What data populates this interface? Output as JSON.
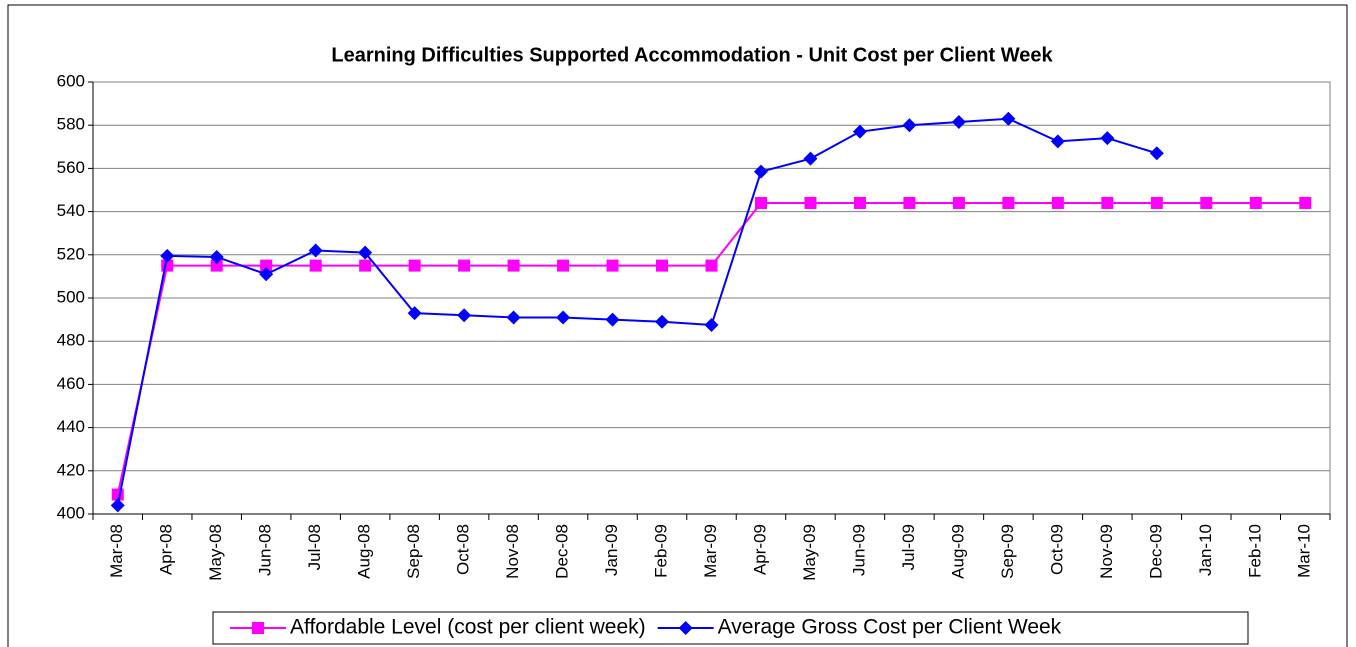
{
  "chart_data": {
    "type": "line",
    "title": "Learning Difficulties Supported Accommodation - Unit Cost per Client Week",
    "categories": [
      "Mar-08",
      "Apr-08",
      "May-08",
      "Jun-08",
      "Jul-08",
      "Aug-08",
      "Sep-08",
      "Oct-08",
      "Nov-08",
      "Dec-08",
      "Jan-09",
      "Feb-09",
      "Mar-09",
      "Apr-09",
      "May-09",
      "Jun-09",
      "Jul-09",
      "Aug-09",
      "Sep-09",
      "Oct-09",
      "Nov-09",
      "Dec-09",
      "Jan-10",
      "Feb-10",
      "Mar-10"
    ],
    "series": [
      {
        "name": "Affordable Level (cost per client week)",
        "color": "#ff00ff",
        "marker": "square",
        "values": [
          409,
          515,
          515,
          515,
          515,
          515,
          515,
          515,
          515,
          515,
          515,
          515,
          515,
          544,
          544,
          544,
          544,
          544,
          544,
          544,
          544,
          544,
          544,
          544,
          544
        ]
      },
      {
        "name": "Average Gross Cost per Client Week",
        "color": "#0000ff",
        "marker": "diamond",
        "values": [
          404,
          519.5,
          519,
          511,
          522,
          521,
          493,
          492,
          491,
          491,
          490,
          489,
          487.5,
          558.5,
          564.5,
          577,
          580,
          581.5,
          583,
          572.5,
          574,
          567,
          null,
          null,
          null
        ]
      }
    ],
    "ylim": [
      400,
      600
    ],
    "yticks": [
      400,
      420,
      440,
      460,
      480,
      500,
      520,
      540,
      560,
      580,
      600
    ],
    "grid": true
  }
}
